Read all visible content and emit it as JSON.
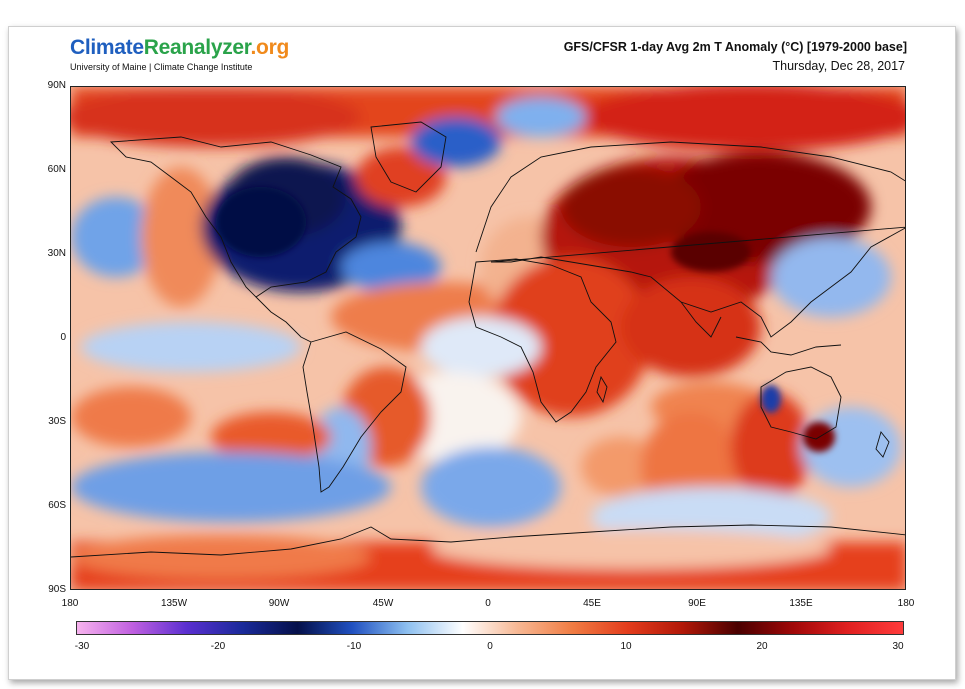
{
  "header": {
    "logo_part1": "Climate",
    "logo_part2": "Reanalyzer",
    "logo_part3": ".org",
    "logo_sub": "University of Maine | Climate Change Institute",
    "title": "GFS/CFSR 1-day Avg 2m T Anomaly (°C) [1979-2000 base]",
    "date": "Thursday, Dec 28, 2017"
  },
  "axes": {
    "lat_labels": [
      "90N",
      "60N",
      "30N",
      "0",
      "30S",
      "60S",
      "90S"
    ],
    "lon_labels": [
      "180",
      "135W",
      "90W",
      "45W",
      "0",
      "45E",
      "90E",
      "135E",
      "180"
    ]
  },
  "colorbar": {
    "labels": [
      "-30",
      "-20",
      "-10",
      "0",
      "10",
      "20",
      "30"
    ],
    "stops": [
      "#f7b3ee",
      "#c060e0",
      "#5a2fd0",
      "#1a2a9a",
      "#05104a",
      "#2050c0",
      "#8ec0f0",
      "#ffffff",
      "#f7b894",
      "#f07c43",
      "#e33c1c",
      "#b21808",
      "#4a0000",
      "#a00808",
      "#e02020",
      "#ff3b3b"
    ]
  },
  "map_data": {
    "type": "anomaly-map",
    "projection": "equirectangular",
    "regions": [
      {
        "name": "north-america-cold",
        "anomaly": "strong negative"
      },
      {
        "name": "greenland-warm",
        "anomaly": "positive"
      },
      {
        "name": "eurasia-warm",
        "anomaly": "strong positive"
      },
      {
        "name": "africa-warm",
        "anomaly": "positive"
      },
      {
        "name": "australia-west-cold",
        "anomaly": "negative"
      },
      {
        "name": "antarctica-warm",
        "anomaly": "positive"
      }
    ]
  }
}
